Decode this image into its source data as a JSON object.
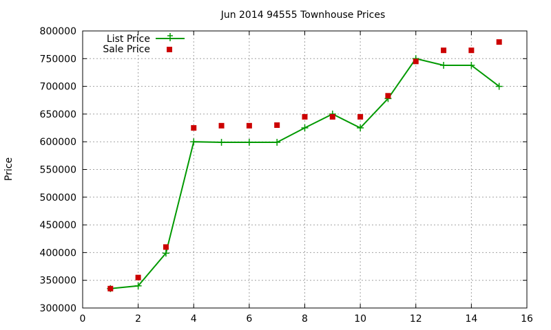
{
  "chart_data": {
    "type": "line",
    "title": "Jun 2014 94555 Townhouse Prices",
    "xlabel": "",
    "ylabel": "Price",
    "xlim": [
      0,
      16
    ],
    "ylim": [
      300000,
      800000
    ],
    "x_ticks": [
      0,
      2,
      4,
      6,
      8,
      10,
      12,
      14,
      16
    ],
    "y_ticks": [
      300000,
      350000,
      400000,
      450000,
      500000,
      550000,
      600000,
      650000,
      700000,
      750000,
      800000
    ],
    "grid": true,
    "legend_position": "top-left",
    "series": [
      {
        "name": "List Price",
        "style": "line-with-plus-markers",
        "color": "#009900",
        "points": [
          [
            1,
            335000
          ],
          [
            2,
            340000
          ],
          [
            3,
            399000
          ],
          [
            4,
            600000
          ],
          [
            5,
            599000
          ],
          [
            6,
            599000
          ],
          [
            7,
            599000
          ],
          [
            8,
            625000
          ],
          [
            9,
            650000
          ],
          [
            10,
            625000
          ],
          [
            11,
            678000
          ],
          [
            12,
            750000
          ],
          [
            13,
            738000
          ],
          [
            14,
            738000
          ],
          [
            15,
            700000
          ]
        ]
      },
      {
        "name": "Sale Price",
        "style": "square-markers",
        "color": "#cc0000",
        "points": [
          [
            1,
            335000
          ],
          [
            2,
            355000
          ],
          [
            3,
            410000
          ],
          [
            4,
            625000
          ],
          [
            5,
            629000
          ],
          [
            6,
            629000
          ],
          [
            7,
            630000
          ],
          [
            8,
            645000
          ],
          [
            9,
            645000
          ],
          [
            10,
            645000
          ],
          [
            11,
            683000
          ],
          [
            12,
            745000
          ],
          [
            13,
            765000
          ],
          [
            14,
            765000
          ],
          [
            15,
            780000
          ]
        ]
      }
    ]
  }
}
